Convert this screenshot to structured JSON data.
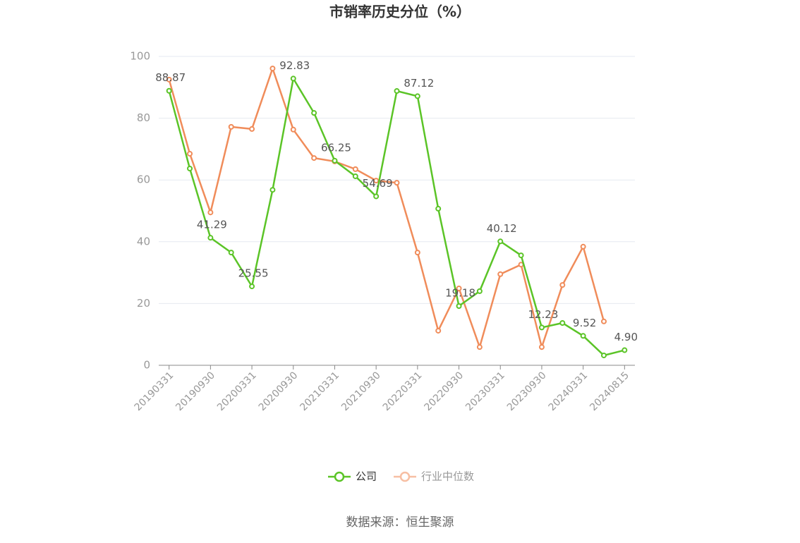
{
  "chart_data": {
    "type": "line",
    "title": "市销率历史分位（%）",
    "categories": [
      "20190331",
      null,
      "20190930",
      null,
      "20200331",
      null,
      "20200930",
      null,
      "20210331",
      null,
      "20210930",
      null,
      "20220331",
      null,
      "20220930",
      null,
      "20230331",
      null,
      "20230930",
      null,
      "20240331",
      null,
      "20240815"
    ],
    "series": [
      {
        "name": "公司",
        "color": "#5bc427",
        "values": [
          88.87,
          63.7,
          41.29,
          36.5,
          25.55,
          56.8,
          92.83,
          81.7,
          66.25,
          61.2,
          54.69,
          88.8,
          87.12,
          50.7,
          19.18,
          24.0,
          40.12,
          35.6,
          12.23,
          13.7,
          9.52,
          3.2,
          4.9
        ],
        "value_labels": [
          "88.87",
          null,
          "41.29",
          null,
          "25.55",
          null,
          "92.83",
          null,
          "66.25",
          null,
          "54.69",
          null,
          "87.12",
          null,
          "19.18",
          null,
          "40.12",
          null,
          "12.23",
          null,
          "9.52",
          null,
          "4.90"
        ]
      },
      {
        "name": "行业中位数",
        "color": "#f08c5a",
        "values": [
          92.5,
          68.5,
          49.5,
          77.2,
          76.5,
          96.1,
          76.3,
          67.1,
          66.0,
          63.5,
          59.8,
          59.1,
          36.5,
          11.2,
          24.9,
          5.9,
          29.5,
          32.6,
          5.9,
          26.0,
          38.4,
          14.2,
          null
        ]
      }
    ],
    "ylim": [
      0,
      100
    ],
    "yticks": [
      0,
      20,
      40,
      60,
      80,
      100
    ],
    "grid": true,
    "source": "数据来源：恒生聚源"
  }
}
